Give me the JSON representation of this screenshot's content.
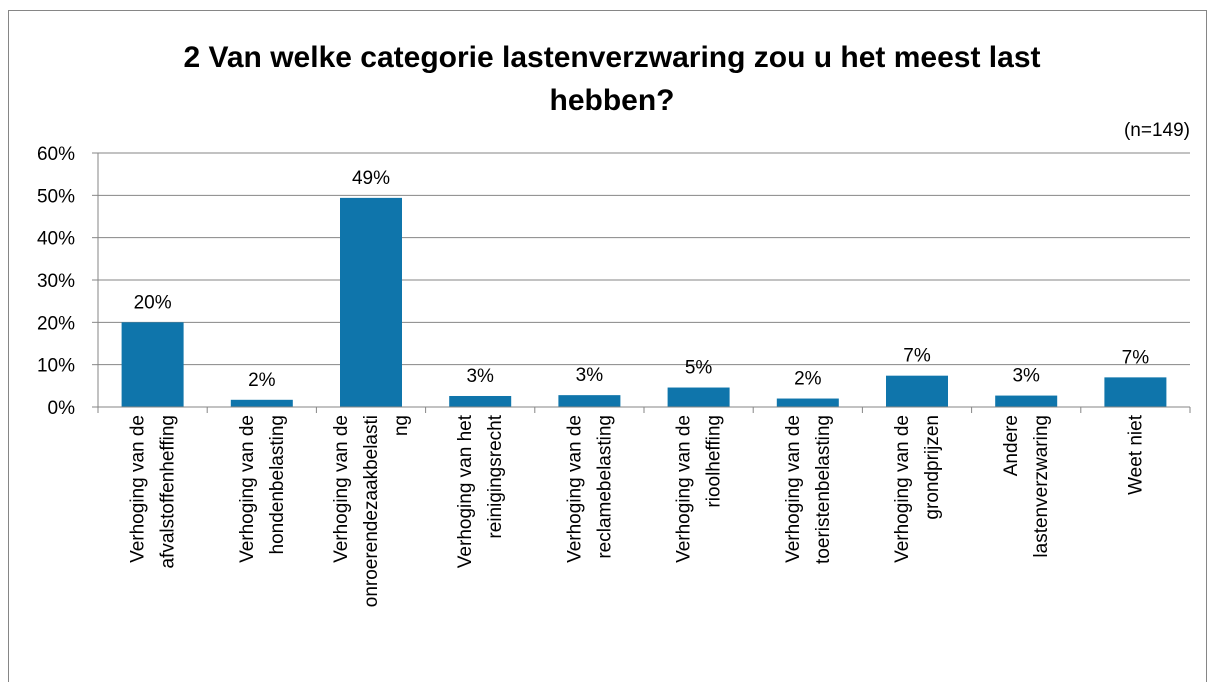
{
  "chart_data": {
    "type": "bar",
    "title": "2 Van welke categorie lastenverzwaring zou u het meest last\nhebben?",
    "subtitle": "(n=149)",
    "categories": [
      "Verhoging van de\nafvalstoffenheffing",
      "Verhoging van de\nhondenbelasting",
      "Verhoging van de\nonroerendezaakbelasti\nng",
      "Verhoging van het\nreinigingsrecht",
      "Verhoging van de\nreclamebelasting",
      "Verhoging van de\nrioolheffing",
      "Verhoging van de\ntoeristenbelasting",
      "Verhoging van de\ngrondprijzen",
      "Andere\nlastenverzwaring",
      "Weet niet"
    ],
    "values": [
      20,
      1.7,
      49.4,
      2.6,
      2.8,
      4.6,
      2.0,
      7.4,
      2.7,
      7.0
    ],
    "value_labels": [
      "20%",
      "2%",
      "49%",
      "3%",
      "3%",
      "5%",
      "2%",
      "7%",
      "3%",
      "7%"
    ],
    "color": "#0f75ab",
    "ylim": [
      0,
      60
    ],
    "yticks": [
      {
        "value": 0,
        "label": "0%"
      },
      {
        "value": 10,
        "label": "10%"
      },
      {
        "value": 20,
        "label": "20%"
      },
      {
        "value": 30,
        "label": "30%"
      },
      {
        "value": 40,
        "label": "40%"
      },
      {
        "value": 50,
        "label": "50%"
      },
      {
        "value": 60,
        "label": "60%"
      }
    ],
    "grid": true
  }
}
